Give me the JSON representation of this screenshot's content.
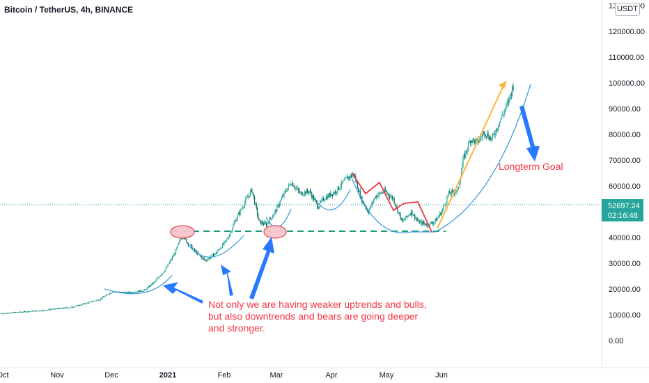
{
  "header": {
    "title": "Bitcoin / TetherUS, 4h, BINANCE",
    "currency": "USDT"
  },
  "chart_data": {
    "type": "candlestick",
    "symbol": "BTCUSDT",
    "interval": "4h",
    "exchange": "BINANCE",
    "y_ticks": [
      "0.00",
      "10000.00",
      "20000.00",
      "30000.00",
      "40000.00",
      "50000.00",
      "60000.00",
      "70000.00",
      "80000.00",
      "90000.00",
      "100000.00",
      "110000.00",
      "120000.00",
      "130000.00"
    ],
    "x_ticks": [
      "Oct",
      "Nov",
      "Dec",
      "2021",
      "Feb",
      "Mar",
      "Apr",
      "May",
      "Jun"
    ],
    "ylim": [
      -9000,
      131000
    ],
    "last_price": "52697.24",
    "countdown": "02:16:48",
    "price_series": [
      {
        "d": 0,
        "p": 10500
      },
      {
        "d": 20,
        "p": 11500
      },
      {
        "d": 40,
        "p": 13000
      },
      {
        "d": 55,
        "p": 16000
      },
      {
        "d": 62,
        "p": 19000
      },
      {
        "d": 70,
        "p": 18500
      },
      {
        "d": 80,
        "p": 19500
      },
      {
        "d": 86,
        "p": 23000
      },
      {
        "d": 92,
        "p": 28000
      },
      {
        "d": 97,
        "p": 34000
      },
      {
        "d": 101,
        "p": 41000
      },
      {
        "d": 104,
        "p": 38000
      },
      {
        "d": 109,
        "p": 34000
      },
      {
        "d": 114,
        "p": 31000
      },
      {
        "d": 120,
        "p": 34000
      },
      {
        "d": 126,
        "p": 39000
      },
      {
        "d": 131,
        "p": 47000
      },
      {
        "d": 137,
        "p": 55000
      },
      {
        "d": 140,
        "p": 58500
      },
      {
        "d": 144,
        "p": 46000
      },
      {
        "d": 148,
        "p": 45000
      },
      {
        "d": 153,
        "p": 50000
      },
      {
        "d": 158,
        "p": 57000
      },
      {
        "d": 162,
        "p": 61500
      },
      {
        "d": 167,
        "p": 57000
      },
      {
        "d": 172,
        "p": 58000
      },
      {
        "d": 177,
        "p": 52000
      },
      {
        "d": 180,
        "p": 55000
      },
      {
        "d": 187,
        "p": 58000
      },
      {
        "d": 193,
        "p": 63000
      },
      {
        "d": 197,
        "p": 64500
      },
      {
        "d": 201,
        "p": 55000
      },
      {
        "d": 205,
        "p": 50000
      },
      {
        "d": 209,
        "p": 56000
      },
      {
        "d": 214,
        "p": 58000
      },
      {
        "d": 219,
        "p": 55000
      },
      {
        "d": 224,
        "p": 46000
      },
      {
        "d": 229,
        "p": 50000
      },
      {
        "d": 233,
        "p": 46000
      },
      {
        "d": 238,
        "p": 45000
      },
      {
        "d": 242,
        "p": 46000
      },
      {
        "d": 246,
        "p": 50000
      },
      {
        "d": 250,
        "p": 57000
      },
      {
        "d": 255,
        "p": 58000
      },
      {
        "d": 258,
        "p": 70000
      },
      {
        "d": 262,
        "p": 78000
      },
      {
        "d": 266,
        "p": 77000
      },
      {
        "d": 270,
        "p": 81000
      },
      {
        "d": 274,
        "p": 78000
      },
      {
        "d": 279,
        "p": 86000
      },
      {
        "d": 283,
        "p": 92000
      },
      {
        "d": 286,
        "p": 99000
      }
    ],
    "annotations": [
      {
        "text": "Not only we are having weaker uptrends and bulls,"
      },
      {
        "text": "but also downtrends and bears are going deeper"
      },
      {
        "text": "and stronger."
      },
      {
        "text": "Longterm Goal"
      }
    ],
    "support_level": 42000,
    "grid": false,
    "colors": {
      "up": "#26a69a",
      "down": "#006b5b",
      "annotation_text": "#f23645",
      "arrow_blue": "#2979ff",
      "curve_blue": "#3d9ddd",
      "trend_red": "#f23645",
      "trend_orange": "#ffb13b",
      "support_dash": "#1f9b77",
      "price_box": "#26a69a",
      "ellipse_fill": "#f7c6cb",
      "ellipse_stroke": "#e0454f"
    }
  }
}
